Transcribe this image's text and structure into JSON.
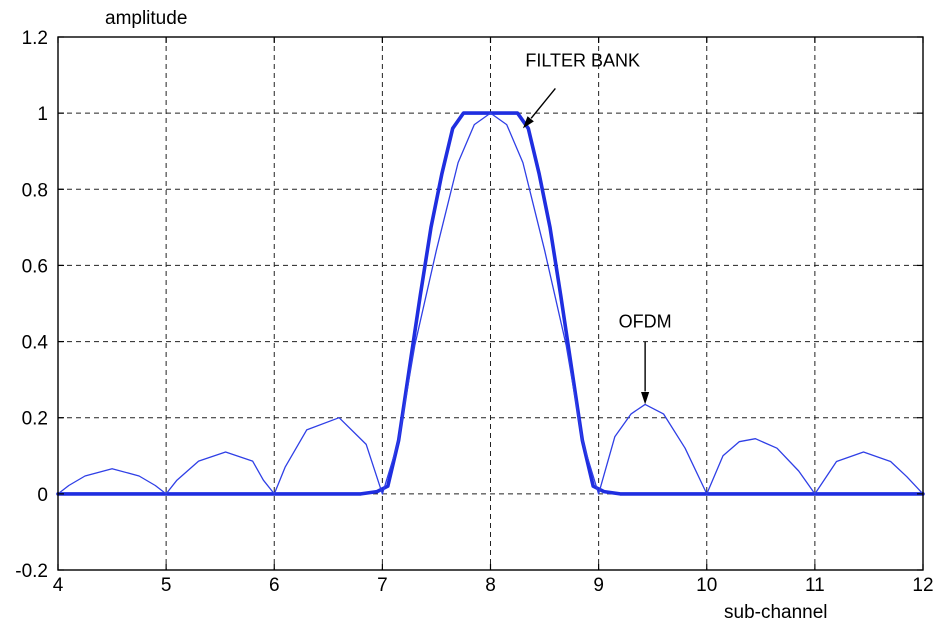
{
  "chart_data": {
    "type": "line",
    "ylabel": "amplitude",
    "xlabel": "sub-channel",
    "xlim": [
      4,
      12
    ],
    "ylim": [
      -0.2,
      1.2
    ],
    "x_ticks": [
      4,
      5,
      6,
      7,
      8,
      9,
      10,
      11,
      12
    ],
    "x_tick_labels": [
      "4",
      "5",
      "6",
      "7",
      "8",
      "9",
      "10",
      "11",
      "12"
    ],
    "y_ticks": [
      -0.2,
      0,
      0.2,
      0.4,
      0.6,
      0.8,
      1,
      1.2
    ],
    "y_tick_labels": [
      "-0.2",
      "0",
      "0.2",
      "0.4",
      "0.6",
      "0.8",
      "1",
      "1.2"
    ],
    "grid": true,
    "series": [
      {
        "name": "FILTER BANK",
        "color": "#1f2ee0",
        "line_weight": "thick",
        "points": [
          [
            4,
            0
          ],
          [
            6.8,
            0
          ],
          [
            6.95,
            0.006
          ],
          [
            7.05,
            0.02
          ],
          [
            7.15,
            0.14
          ],
          [
            7.25,
            0.33
          ],
          [
            7.35,
            0.52
          ],
          [
            7.45,
            0.7
          ],
          [
            7.55,
            0.84
          ],
          [
            7.65,
            0.96
          ],
          [
            7.75,
            1.0
          ],
          [
            8.25,
            1.0
          ],
          [
            8.35,
            0.96
          ],
          [
            8.45,
            0.84
          ],
          [
            8.55,
            0.7
          ],
          [
            8.65,
            0.52
          ],
          [
            8.75,
            0.33
          ],
          [
            8.85,
            0.14
          ],
          [
            8.95,
            0.02
          ],
          [
            9.05,
            0.006
          ],
          [
            9.2,
            0
          ],
          [
            12,
            0
          ]
        ]
      },
      {
        "name": "OFDM",
        "color": "#2f3fe6",
        "line_weight": "thin",
        "points": [
          [
            4,
            0
          ],
          [
            4.1,
            0.022
          ],
          [
            4.25,
            0.047
          ],
          [
            4.5,
            0.066
          ],
          [
            4.75,
            0.047
          ],
          [
            4.9,
            0.022
          ],
          [
            5,
            0
          ],
          [
            5.1,
            0.036
          ],
          [
            5.3,
            0.086
          ],
          [
            5.55,
            0.11
          ],
          [
            5.8,
            0.086
          ],
          [
            5.9,
            0.036
          ],
          [
            6,
            0
          ],
          [
            6.1,
            0.07
          ],
          [
            6.3,
            0.168
          ],
          [
            6.6,
            0.2
          ],
          [
            6.85,
            0.13
          ],
          [
            7,
            0
          ],
          [
            7.15,
            0.14
          ],
          [
            7.3,
            0.39
          ],
          [
            7.5,
            0.64
          ],
          [
            7.7,
            0.87
          ],
          [
            7.85,
            0.97
          ],
          [
            8,
            1.0
          ],
          [
            8.15,
            0.97
          ],
          [
            8.3,
            0.87
          ],
          [
            8.5,
            0.64
          ],
          [
            8.7,
            0.39
          ],
          [
            8.85,
            0.14
          ],
          [
            9,
            0
          ],
          [
            9.15,
            0.15
          ],
          [
            9.3,
            0.21
          ],
          [
            9.43,
            0.235
          ],
          [
            9.6,
            0.21
          ],
          [
            9.8,
            0.12
          ],
          [
            10,
            0
          ],
          [
            10.15,
            0.1
          ],
          [
            10.3,
            0.137
          ],
          [
            10.45,
            0.145
          ],
          [
            10.65,
            0.12
          ],
          [
            10.85,
            0.06
          ],
          [
            11,
            0
          ],
          [
            11.2,
            0.085
          ],
          [
            11.45,
            0.11
          ],
          [
            11.7,
            0.085
          ],
          [
            11.85,
            0.045
          ],
          [
            12,
            0
          ]
        ]
      }
    ],
    "annotations": [
      {
        "text": "FILTER BANK",
        "target": [
          8.3,
          0.96
        ],
        "text_anchor_at": [
          8.6,
          1.065
        ]
      },
      {
        "text": "OFDM",
        "target": [
          9.43,
          0.235
        ],
        "text_anchor_at": [
          9.43,
          0.4
        ]
      }
    ]
  }
}
